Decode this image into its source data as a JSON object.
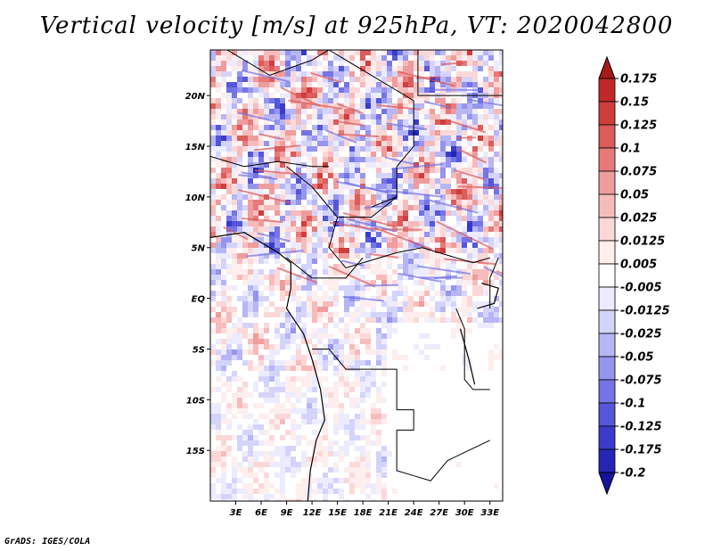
{
  "chart_data": {
    "type": "heatmap",
    "title": "Vertical velocity [m/s] at 925hPa, VT: 2020042800",
    "variable": "Vertical velocity",
    "units": "m/s",
    "level": "925hPa",
    "valid_time": "2020042800",
    "x_ticks": [
      "3E",
      "6E",
      "9E",
      "12E",
      "15E",
      "18E",
      "21E",
      "24E",
      "27E",
      "30E",
      "33E"
    ],
    "x_tick_values": [
      3,
      6,
      9,
      12,
      15,
      18,
      21,
      24,
      27,
      30,
      33
    ],
    "y_ticks": [
      "20N",
      "15N",
      "10N",
      "5N",
      "EQ",
      "5S",
      "10S",
      "15S"
    ],
    "y_tick_values": [
      20,
      15,
      10,
      5,
      0,
      -5,
      -10,
      -15
    ],
    "lon_range": [
      0,
      34.5
    ],
    "lat_range": [
      -20,
      24.5
    ],
    "colorbar": {
      "labels": [
        "0.175",
        "0.15",
        "0.125",
        "0.1",
        "0.075",
        "0.05",
        "0.025",
        "0.0125",
        "0.005",
        "-0.005",
        "-0.0125",
        "-0.025",
        "-0.05",
        "-0.075",
        "-0.1",
        "-0.125",
        "-0.175",
        "-0.2"
      ],
      "colors": [
        "#a51a1a",
        "#c02828",
        "#cf3d3d",
        "#dc5b5b",
        "#e67a7a",
        "#ef9c9c",
        "#f6bcbc",
        "#fbd8d8",
        "#feeeee",
        "#ffffff",
        "#ececfe",
        "#d4d4fb",
        "#b6b6f6",
        "#9595ef",
        "#7474e6",
        "#5656da",
        "#3b3bcb",
        "#2525b4",
        "#15159a"
      ]
    }
  },
  "credit": "GrADS: IGES/COLA"
}
